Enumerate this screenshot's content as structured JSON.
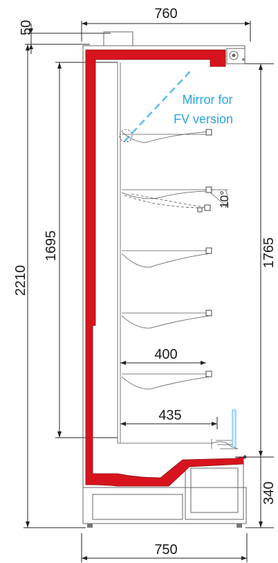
{
  "drawing": {
    "dimensions": {
      "top_overhang": "50",
      "overall_depth_top": "760",
      "overall_height": "2210",
      "interior_height": "1695",
      "display_height": "1765",
      "shelf_depth_upper": "400",
      "shelf_depth_lower": "435",
      "base_height": "340",
      "overall_depth_bottom": "750",
      "shelf_tilt": "10°"
    },
    "annotation": {
      "mirror_line1": "Mirror for",
      "mirror_line2": "FV version"
    },
    "colors": {
      "insulation": "#d7141e",
      "mirror": "#5bbde8",
      "dimension_lines": "#222222",
      "note_text": "#2aa6dc"
    }
  }
}
